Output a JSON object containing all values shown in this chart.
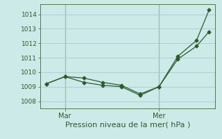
{
  "background_color": "#cceae7",
  "grid_color": "#aaccca",
  "line_color": "#2d5a2d",
  "spine_color": "#4a7a4a",
  "title": "Pression niveau de la mer( hPa )",
  "ylim": [
    1007.5,
    1014.7
  ],
  "yticks": [
    1008,
    1009,
    1010,
    1011,
    1012,
    1013,
    1014
  ],
  "xlim": [
    0,
    14
  ],
  "xtick_positions": [
    2.0,
    9.5
  ],
  "xtick_labels": [
    "Mar",
    "Mer"
  ],
  "vline_positions": [
    2.0,
    9.5
  ],
  "line1_x": [
    0.5,
    2.0,
    3.5,
    5.0,
    6.5,
    8.0,
    9.5,
    11.0,
    12.5,
    13.5
  ],
  "line1_y": [
    1009.2,
    1009.7,
    1009.3,
    1009.1,
    1009.0,
    1008.4,
    1009.0,
    1010.9,
    1011.8,
    1012.8
  ],
  "line2_x": [
    0.5,
    2.0,
    3.5,
    5.0,
    6.5,
    8.0,
    9.5,
    11.0,
    12.5,
    13.5
  ],
  "line2_y": [
    1009.2,
    1009.7,
    1009.6,
    1009.3,
    1009.1,
    1008.5,
    1009.0,
    1011.1,
    1012.2,
    1014.3
  ],
  "ylabel_fontsize": 7,
  "xlabel_fontsize": 8,
  "tick_labelsize": 6.5
}
